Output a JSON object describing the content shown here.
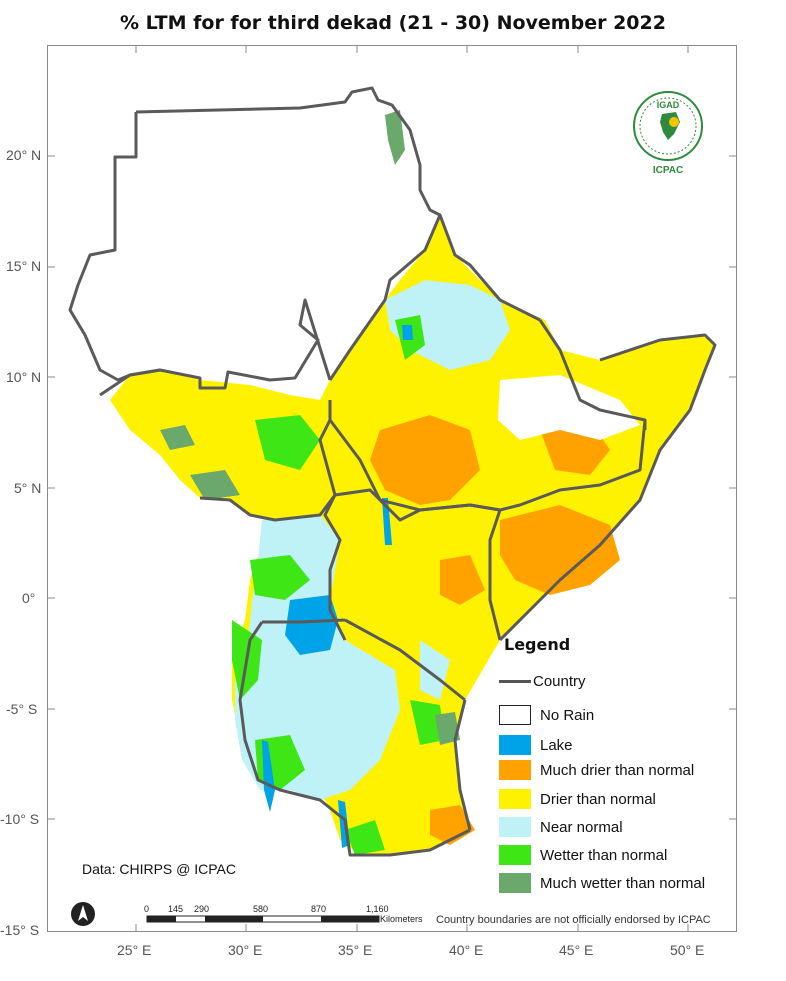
{
  "title": "% LTM for  for third dekad (21 - 30) November 2022",
  "legend": {
    "title": "Legend",
    "country": "Country",
    "items": [
      {
        "label": "No Rain",
        "color": "#ffffff"
      },
      {
        "label": "Lake",
        "color": "#00a3e8"
      },
      {
        "label": "Much drier than normal",
        "color": "#ffa200"
      },
      {
        "label": "Drier than normal",
        "color": "#fff200"
      },
      {
        "label": "Near normal",
        "color": "#bff2f7"
      },
      {
        "label": "Wetter than normal",
        "color": "#3fe615"
      },
      {
        "label": "Much wetter than normal",
        "color": "#6aa86c"
      }
    ]
  },
  "axes": {
    "lat": [
      "20° N",
      "15° N",
      "10° N",
      "5° N",
      "0°",
      "-5° S",
      "-10° S",
      "-15° S"
    ],
    "lon": [
      "25° E",
      "30° E",
      "35° E",
      "40° E",
      "45° E",
      "50° E"
    ]
  },
  "scale": {
    "ticks": [
      "0",
      "145",
      "290",
      "580",
      "870",
      "1,160"
    ],
    "unit": "Kilometers"
  },
  "source": "Data: CHIRPS @ ICPAC",
  "disclaimer": "Country boundaries are not officially endorsed by ICPAC",
  "logo": {
    "top": "IGAD",
    "bottom": "ICPAC"
  }
}
